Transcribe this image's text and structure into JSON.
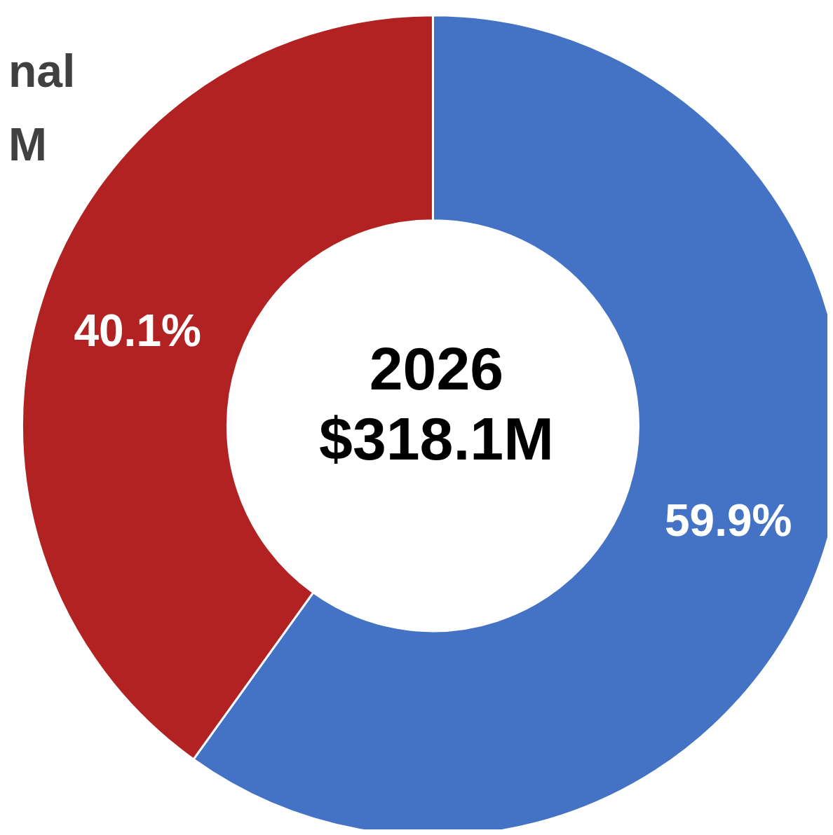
{
  "chart_data": {
    "type": "donut",
    "title": "2026",
    "subtitle": "$318.1M",
    "categories": [
      null,
      null
    ],
    "values": [
      59.9,
      40.1
    ],
    "colors": [
      "#4472c4",
      "#b22222"
    ],
    "value_labels": [
      "59.9%",
      "40.1%"
    ],
    "annotations": [
      "nal",
      "M"
    ]
  }
}
